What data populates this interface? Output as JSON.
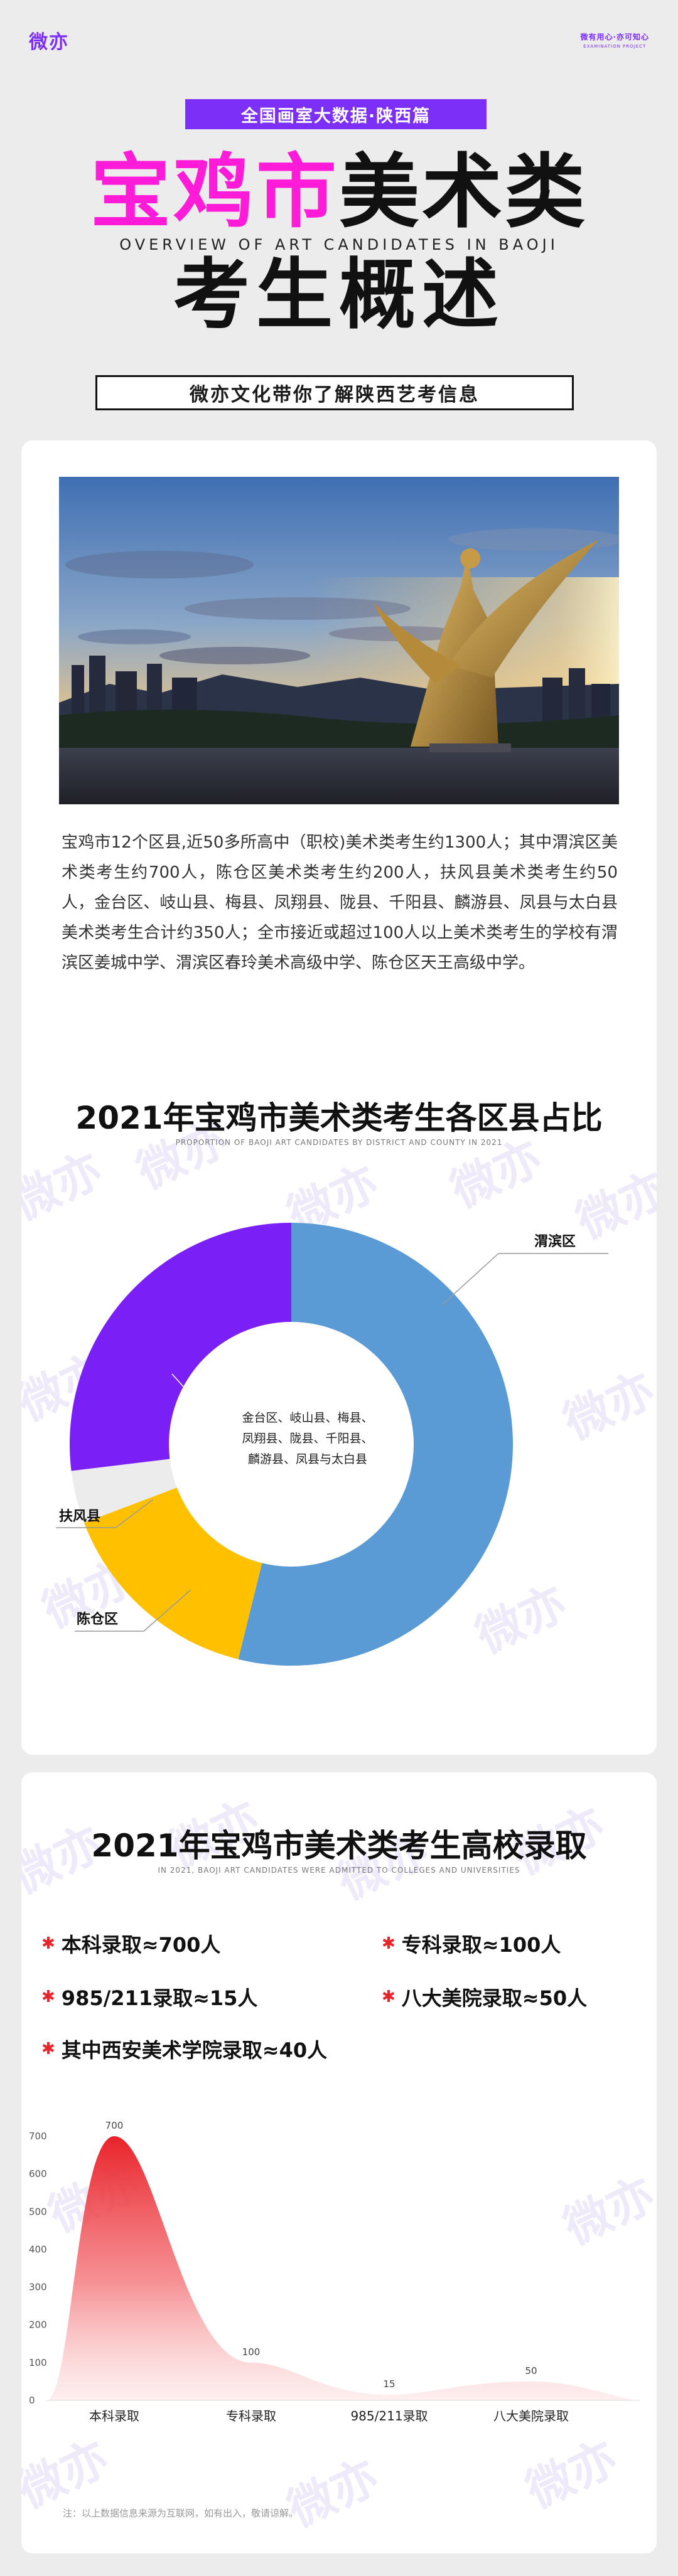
{
  "header": {
    "brand": "微亦",
    "slogan_line1": "微有用心·亦可知心",
    "slogan_line2": "EXAMINATION PROJECT",
    "series_tag": "全国画室大数据·陕西篇",
    "title_line1_accent": "宝鸡市",
    "title_line1_dark": "美术类",
    "title_en": "OVERVIEW OF ART CANDIDATES IN BAOJI",
    "title_line2": "考生概述",
    "intro": "微亦文化带你了解陕西艺考信息"
  },
  "watermark_text": "微亦",
  "intro_card": {
    "paragraph": "宝鸡市12个区县,近50多所高中（职校)美术类考生约1300人；其中渭滨区美术类考生约700人，陈仓区美术类考生约200人，扶风县美术类考生约50人，金台区、岐山县、梅县、凤翔县、陇县、千阳县、麟游县、凤县与太白县美术类考生合计约350人；全市接近或超过100人以上美术类考生的学校有渭滨区姜城中学、渭滨区春玲美术高级中学、陈仓区天王高级中学。"
  },
  "donut": {
    "title": "2021年宝鸡市美术类考生各区县占比",
    "subtitle": "PROPORTION OF BAOJI ART CANDIDATES BY DISTRICT AND COUNTY IN 2021",
    "labels": {
      "weibin": "渭滨区",
      "fufeng": "扶风县",
      "chencang": "陈仓区",
      "others": [
        "金台区、岐山县、梅县、",
        "凤翔县、陇县、千阳县、",
        "麟游县、凤县与太白县"
      ]
    }
  },
  "admission": {
    "title": "2021年宝鸡市美术类考生高校录取",
    "subtitle": "IN 2021, BAOJI ART CANDIDATES WERE ADMITTED TO COLLEGES AND UNIVERSITIES",
    "bullet": "✱",
    "items": {
      "benke": "本科录取≈700人",
      "zhuanke": "专科录取≈100人",
      "985": "985/211录取≈15人",
      "bada": "八大美院录取≈50人",
      "xian": "其中西安美术学院录取≈40人"
    },
    "footnote": "注：以上数据信息来源为互联网，如有出入，敬请谅解。"
  },
  "colors": {
    "purple": "#7b2ff7",
    "magenta": "#ff1bd7",
    "weibin": "#5b9bd5",
    "chencang": "#ffc000",
    "fufeng": "#ececec",
    "others": "#7b1ff7",
    "area_red": "#e8232a"
  },
  "chart_data": [
    {
      "type": "pie",
      "title": "2021年宝鸡市美术类考生各区县占比",
      "subtitle": "PROPORTION OF BAOJI ART CANDIDATES BY DISTRICT AND COUNTY IN 2021",
      "categories": [
        "渭滨区",
        "陈仓区",
        "扶风县",
        "金台区、岐山县、梅县、凤翔县、陇县、千阳县、麟游县、凤县与太白县"
      ],
      "values": [
        700,
        200,
        50,
        350
      ],
      "donut": true
    },
    {
      "type": "area",
      "title": "2021年宝鸡市美术类考生高校录取",
      "categories": [
        "本科录取",
        "专科录取",
        "985/211录取",
        "八大美院录取"
      ],
      "values": [
        700,
        100,
        15,
        50
      ],
      "yticks": [
        0,
        100,
        200,
        300,
        400,
        500,
        600,
        700
      ],
      "ylim": [
        0,
        700
      ],
      "grid": false
    }
  ]
}
